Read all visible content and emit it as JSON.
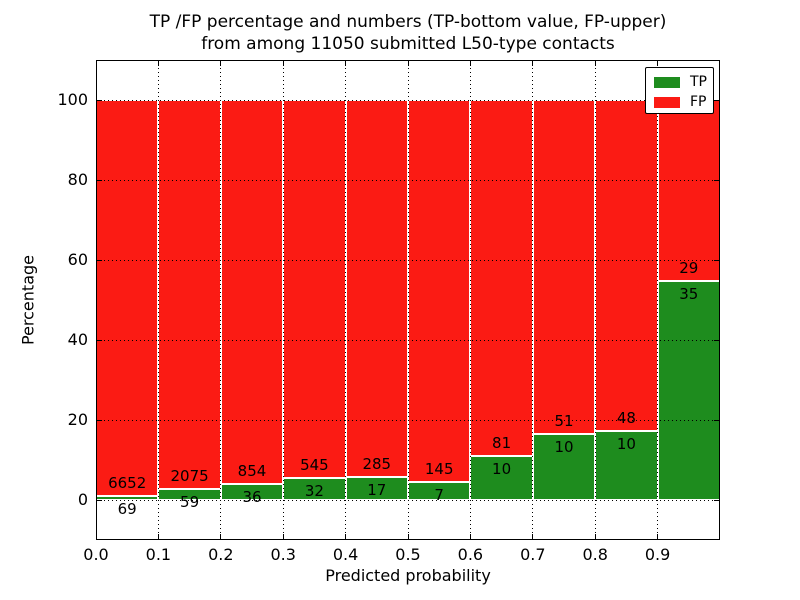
{
  "title": {
    "line1": "TP /FP percentage and numbers (TP-bottom value, FP-upper)",
    "line2": "from among 11050 submitted L50-type contacts"
  },
  "axes": {
    "xlabel": "Predicted probability",
    "ylabel": "Percentage",
    "xtick_labels": [
      "0.0",
      "0.1",
      "0.2",
      "0.3",
      "0.4",
      "0.5",
      "0.6",
      "0.7",
      "0.8",
      "0.9"
    ],
    "ytick_labels": [
      "0",
      "20",
      "40",
      "60",
      "80",
      "100"
    ],
    "ytick_values": [
      0,
      20,
      40,
      60,
      80,
      100
    ],
    "xlim": [
      0.0,
      1.0
    ],
    "ylim": [
      -10,
      110
    ]
  },
  "legend": {
    "items": [
      {
        "label": "TP",
        "color": "#1e8c1e"
      },
      {
        "label": "FP",
        "color": "#fb1b14"
      }
    ],
    "position": "upper right"
  },
  "colors": {
    "tp_green": "#1e8c1e",
    "fp_red": "#fb1b14",
    "frame": "#000000",
    "background": "#ffffff"
  },
  "chart_data": {
    "type": "bar",
    "stacked": true,
    "normalized_to_percent": true,
    "title": "TP /FP percentage and numbers (TP-bottom value, FP-upper) from among 11050 submitted L50-type contacts",
    "xlabel": "Predicted probability",
    "ylabel": "Percentage",
    "bin_edges": [
      0.0,
      0.1,
      0.2,
      0.3,
      0.4,
      0.5,
      0.6,
      0.7,
      0.8,
      0.9,
      1.0
    ],
    "series": [
      {
        "name": "TP",
        "color": "#1e8c1e",
        "counts": [
          69,
          59,
          36,
          32,
          17,
          7,
          10,
          10,
          10,
          35
        ],
        "percent": [
          1.0,
          2.8,
          4.0,
          5.5,
          5.6,
          4.6,
          11.0,
          16.4,
          17.2,
          54.7
        ]
      },
      {
        "name": "FP",
        "color": "#fb1b14",
        "counts": [
          6652,
          2075,
          854,
          545,
          285,
          145,
          81,
          51,
          48,
          29
        ],
        "percent": [
          99.0,
          97.2,
          96.0,
          94.5,
          94.4,
          95.4,
          89.0,
          83.6,
          82.8,
          45.3
        ]
      }
    ],
    "total_submitted": 11050,
    "xlim": [
      0.0,
      1.0
    ],
    "ylim": [
      -10,
      110
    ],
    "yticks": [
      0,
      20,
      40,
      60,
      80,
      100
    ],
    "xticks": [
      0.0,
      0.1,
      0.2,
      0.3,
      0.4,
      0.5,
      0.6,
      0.7,
      0.8,
      0.9
    ],
    "grid": "dotted, both axes, drawn over bars",
    "legend_position": "upper right",
    "bar_edge_color": "#ffffff"
  }
}
